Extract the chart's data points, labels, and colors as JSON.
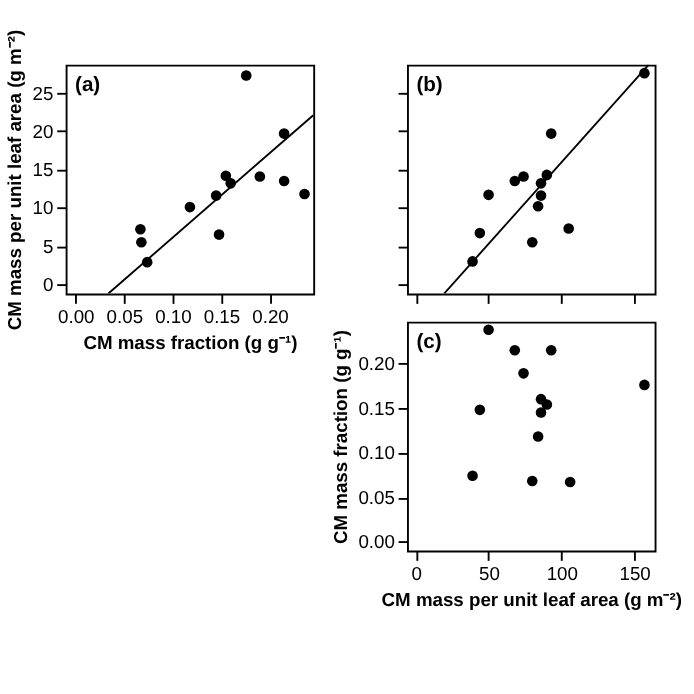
{
  "chart_data": [
    {
      "type": "scatter",
      "annotations": [
        "(a)"
      ],
      "xlabel": "CM mass fraction (g g⁻¹)",
      "ylabel": "CM mass per unit leaf area (g m⁻²)",
      "xlim": [
        -0.01,
        0.245
      ],
      "ylim": [
        -1.2,
        28.7
      ],
      "xticks": [
        {
          "value": 0,
          "label": "0.00"
        },
        0.05,
        {
          "value": 0.1,
          "label": "0.10"
        },
        0.15,
        {
          "value": 0.2,
          "label": "0.20"
        }
      ],
      "yticks": [
        0,
        5,
        10,
        15,
        20,
        25
      ],
      "grid": false,
      "marker": "circle",
      "series": [
        {
          "type": "scatter",
          "color": "#000000",
          "x": [
            0.176,
            0.215,
            0.155,
            0.16,
            0.19,
            0.215,
            0.145,
            0.118,
            0.067,
            0.068,
            0.148,
            0.074,
            0.236
          ],
          "values": [
            27.3,
            19.7,
            14.2,
            13.2,
            14.1,
            13.5,
            11.6,
            10.1,
            7.2,
            5.5,
            6.5,
            2.9,
            11.8
          ]
        },
        {
          "type": "line",
          "color": "#000000",
          "marker": "none",
          "x": [
            0.034,
            0.245
          ],
          "values": [
            -1.2,
            22.1
          ]
        }
      ]
    },
    {
      "type": "scatter",
      "annotations": [
        "(b)"
      ],
      "xlim": [
        -6,
        164
      ],
      "ylim": [
        -1.2,
        28.7
      ],
      "xticks": [
        0,
        50,
        100,
        150
      ],
      "yticks": [
        0,
        5,
        10,
        15,
        20,
        25
      ],
      "tick_labels": false,
      "grid": false,
      "marker": "circle",
      "series": [
        {
          "type": "scatter",
          "color": "#000000",
          "x": [
            157,
            93,
            90,
            74,
            68,
            86,
            50,
            86,
            84,
            44,
            105,
            80,
            39
          ],
          "values": [
            27.6,
            19.7,
            14.3,
            14.1,
            13.5,
            13.2,
            11.7,
            11.6,
            10.2,
            6.7,
            7.3,
            5.5,
            3.0
          ]
        },
        {
          "type": "line",
          "color": "#000000",
          "marker": "none",
          "x": [
            19.5,
            160
          ],
          "values": [
            -1.2,
            28.7
          ]
        }
      ]
    },
    {
      "type": "scatter",
      "annotations": [
        "(c)"
      ],
      "xlabel": "CM mass per unit leaf area (g m⁻²)",
      "ylabel": "CM mass fraction (g g⁻¹)",
      "xlim": [
        -6,
        164
      ],
      "ylim": [
        -0.01,
        0.247
      ],
      "xticks": [
        0,
        50,
        100,
        150
      ],
      "yticks": [
        {
          "value": 0,
          "label": "0.00"
        },
        0.05,
        {
          "value": 0.1,
          "label": "0.10"
        },
        0.15,
        {
          "value": 0.2,
          "label": "0.20"
        }
      ],
      "grid": false,
      "marker": "circle",
      "series": [
        {
          "type": "scatter",
          "color": "#000000",
          "x": [
            50,
            68,
            93,
            74,
            157,
            86,
            90,
            44,
            86,
            84,
            39,
            80,
            106
          ],
          "values": [
            0.238,
            0.215,
            0.215,
            0.189,
            0.176,
            0.16,
            0.154,
            0.148,
            0.145,
            0.118,
            0.074,
            0.068,
            0.067
          ]
        }
      ]
    }
  ]
}
